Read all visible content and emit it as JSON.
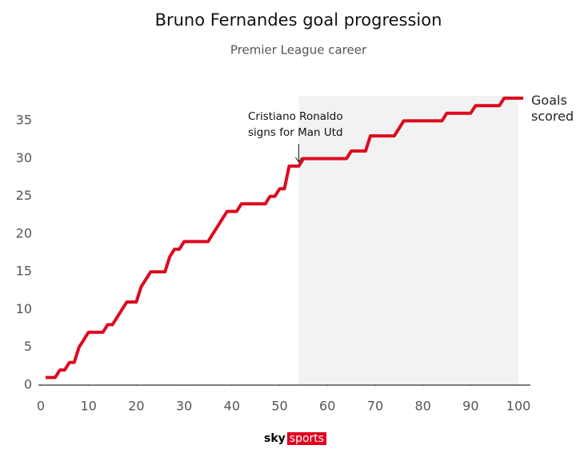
{
  "chart_data": {
    "type": "line",
    "title": "Bruno Fernandes goal progression",
    "subtitle": "Premier League career",
    "x": [
      1,
      2,
      3,
      4,
      5,
      6,
      7,
      8,
      9,
      10,
      11,
      12,
      13,
      14,
      15,
      16,
      17,
      18,
      19,
      20,
      21,
      22,
      23,
      24,
      25,
      26,
      27,
      28,
      29,
      30,
      31,
      32,
      33,
      34,
      35,
      36,
      37,
      38,
      39,
      40,
      41,
      42,
      43,
      44,
      45,
      46,
      47,
      48,
      49,
      50,
      51,
      52,
      53,
      54,
      55,
      56,
      57,
      58,
      59,
      60,
      61,
      62,
      63,
      64,
      65,
      66,
      67,
      68,
      69,
      70,
      71,
      72,
      73,
      74,
      75,
      76,
      77,
      78,
      79,
      80,
      81,
      82,
      83,
      84,
      85,
      86,
      87,
      88,
      89,
      90,
      91,
      92,
      93,
      94,
      95,
      96,
      97,
      98,
      99,
      100,
      101
    ],
    "series": [
      {
        "name": "Goals scored",
        "color": "#dc0a1e",
        "values": [
          1,
          1,
          1,
          2,
          2,
          3,
          3,
          5,
          6,
          7,
          7,
          7,
          7,
          8,
          8,
          9,
          10,
          11,
          11,
          11,
          13,
          14,
          15,
          15,
          15,
          15,
          17,
          18,
          18,
          19,
          19,
          19,
          19,
          19,
          19,
          20,
          21,
          22,
          23,
          23,
          23,
          24,
          24,
          24,
          24,
          24,
          24,
          25,
          25,
          26,
          26,
          29,
          29,
          29,
          30,
          30,
          30,
          30,
          30,
          30,
          30,
          30,
          30,
          30,
          31,
          31,
          31,
          31,
          33,
          33,
          33,
          33,
          33,
          33,
          34,
          35,
          35,
          35,
          35,
          35,
          35,
          35,
          35,
          35,
          36,
          36,
          36,
          36,
          36,
          36,
          37,
          37,
          37,
          37,
          37,
          37,
          38,
          38,
          38,
          38,
          38
        ]
      }
    ],
    "xlim": [
      -0.5,
      102.5
    ],
    "xticks": [
      0,
      10,
      20,
      30,
      40,
      50,
      60,
      70,
      80,
      90,
      100
    ],
    "ylim": [
      0,
      38.3
    ],
    "yticks": [
      0,
      5,
      10,
      15,
      20,
      25,
      30,
      35
    ],
    "grid": false,
    "shaded_range": [
      54,
      100
    ],
    "shade_color": "#f2f2f2",
    "annotation": {
      "x": 54,
      "y": 29,
      "lines": [
        "Cristiano Ronaldo",
        "signs for Man Utd"
      ]
    },
    "logo": {
      "brand": "sky",
      "product": "sports"
    }
  }
}
